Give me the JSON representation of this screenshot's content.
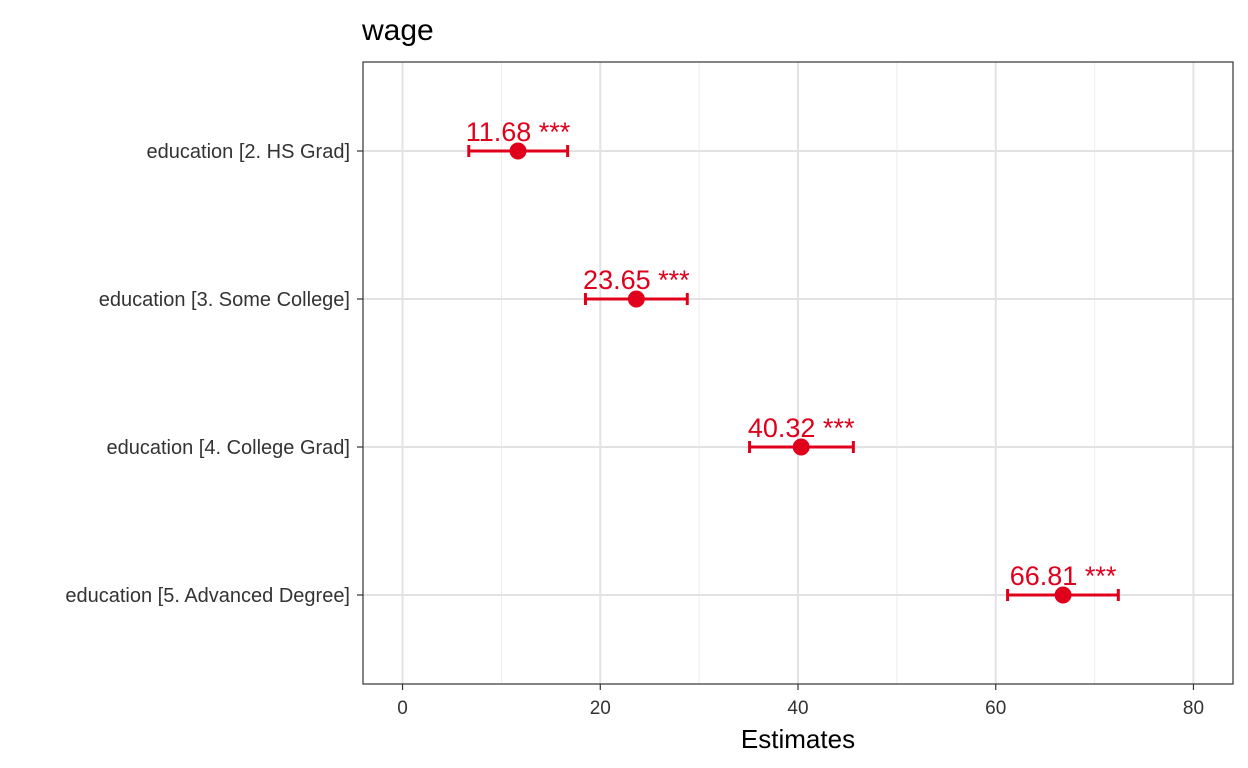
{
  "chart_data": {
    "type": "scatter",
    "title": "wage",
    "xlabel": "Estimates",
    "ylabel": "",
    "xlim": [
      -4,
      84
    ],
    "xticks": [
      0,
      20,
      40,
      60,
      80
    ],
    "xtick_labels": [
      "0",
      "20",
      "40",
      "60",
      "80"
    ],
    "grid": true,
    "color": "#e0001b",
    "categories": [
      "education [2. HS Grad]",
      "education [3. Some College]",
      "education [4. College Grad]",
      "education [5. Advanced Degree]"
    ],
    "estimates": [
      11.68,
      23.65,
      40.32,
      66.81
    ],
    "ci_low": [
      6.7,
      18.5,
      35.1,
      61.2
    ],
    "ci_high": [
      16.7,
      28.8,
      45.6,
      72.4
    ],
    "labels": [
      "11.68 ***",
      "23.65 ***",
      "40.32 ***",
      "66.81 ***"
    ]
  }
}
